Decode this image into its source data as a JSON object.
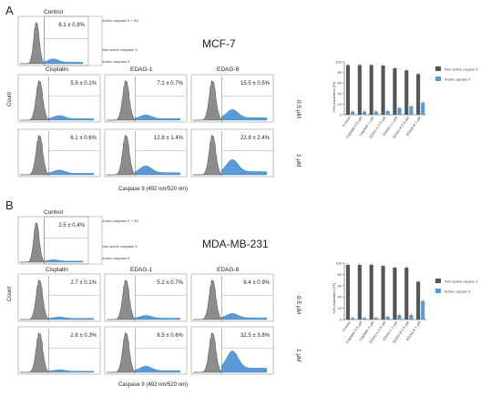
{
  "figure": {
    "panels": [
      {
        "letter": "A",
        "cell_line": "MCF-7",
        "control_title": "Control",
        "control_pct": "6.1 ± 0.8%",
        "gate_labels": [
          "Active caspase 9 + SD",
          "Non-active caspase 9",
          "Active caspase 9"
        ],
        "treatments": [
          "Cisplatin",
          "EDAG-1",
          "EDAG-8"
        ],
        "row_labels": [
          "0.5 µM",
          "1 µM"
        ],
        "pcts": [
          [
            "5.9 ± 0.1%",
            "7.1 ± 0.7%",
            "15.5 ± 0.5%"
          ],
          [
            "6.1 ± 0.6%",
            "12.8 ± 1.4%",
            "22.8 ± 2.4%"
          ]
        ],
        "xlabel": "Caspase 9 (492 nm/520 nm)",
        "ylabel": "Count"
      },
      {
        "letter": "B",
        "cell_line": "MDA-MB-231",
        "control_title": "Control",
        "control_pct": "2.5 ± 0.4%",
        "gate_labels": [
          "Active caspase 9 + SD",
          "Non-active caspase 9",
          "Active caspase 9"
        ],
        "treatments": [
          "Cisplatin",
          "EDAG-1",
          "EDAG-8"
        ],
        "row_labels": [
          "0.5 µM",
          "1 µM"
        ],
        "pcts": [
          [
            "2.7 ± 0.1%",
            "5.2 ± 0.7%",
            "8.4 ± 0.9%"
          ],
          [
            "2.8 ± 0.3%",
            "8.5 ± 0.6%",
            "32.5 ± 3.8%"
          ]
        ],
        "xlabel": "Caspase 9 (492 nm/520 nm)",
        "ylabel": "Count"
      }
    ]
  },
  "chart_data": [
    {
      "type": "bar",
      "panel": "A",
      "categories": [
        "Control",
        "Cisplatin 0.5 µM",
        "Cisplatin 1 µM",
        "EDAG-1 0.5 µM",
        "EDAG-1 1 µM",
        "EDAG-8 0.5 µM",
        "EDAG-8 1 µM"
      ],
      "series": [
        {
          "name": "Non-active capase 9",
          "values": [
            94,
            94,
            94,
            93,
            88,
            84,
            77
          ],
          "color": "#555555"
        },
        {
          "name": "Active capase 9",
          "values": [
            6,
            6,
            6,
            7,
            13,
            16,
            23
          ],
          "color": "#5b9bd5"
        }
      ],
      "ylabel": "Cell population [%]",
      "ylim": [
        0,
        100
      ],
      "yticks": [
        0,
        20,
        40,
        60,
        80,
        100
      ],
      "legend_position": "right"
    },
    {
      "type": "bar",
      "panel": "B",
      "categories": [
        "Control",
        "Cisplatin 0.5 µM",
        "Cisplatin 1 µM",
        "EDAG-1 0.5 µM",
        "EDAG-1 1 µM",
        "EDAG-8 0.5 µM",
        "EDAG-8 1 µM"
      ],
      "series": [
        {
          "name": "Non-active capase 9",
          "values": [
            97,
            97,
            97,
            95,
            92,
            92,
            67
          ],
          "color": "#555555"
        },
        {
          "name": "Active capase 9",
          "values": [
            3,
            3,
            3,
            5,
            8,
            8,
            33
          ],
          "color": "#5b9bd5"
        }
      ],
      "ylabel": "Cell population [%]",
      "ylim": [
        0,
        100
      ],
      "yticks": [
        0,
        20,
        40,
        60,
        80,
        100
      ],
      "legend_position": "right"
    }
  ]
}
